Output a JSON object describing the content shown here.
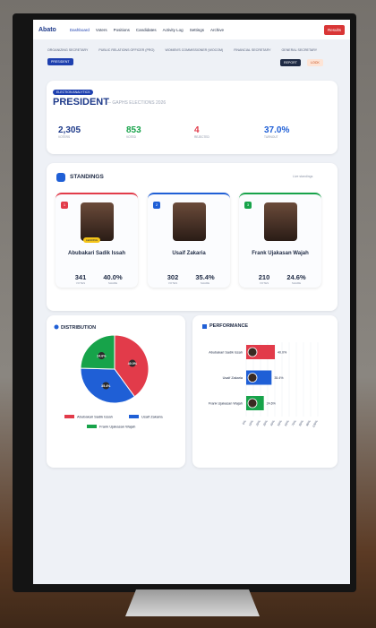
{
  "nav": {
    "brand": "Abato",
    "items": [
      "Dashboard",
      "Voters",
      "Positions",
      "Candidates",
      "Activity Log",
      "Settings",
      "Archive"
    ],
    "results": "Results"
  },
  "tabs": [
    "ORGANIZING SECRETARY",
    "PUBLIC RELATIONS OFFICER (PRO)",
    "WOMEN'S COMMISSIONER (WOCOM)",
    "FINANCIAL SECRETARY",
    "GENERAL SECRETARY",
    "PRESIDENT"
  ],
  "actions": [
    "REPORT",
    "LOCK"
  ],
  "header": {
    "badge": "ELECTION ANALYTICS",
    "title": "PRESIDENT",
    "subtitle": "— GAPHS ELECTIONS 2026"
  },
  "stats": [
    {
      "value": "2,305",
      "label": "VOTERS"
    },
    {
      "value": "853",
      "label": "VOTED"
    },
    {
      "value": "4",
      "label": "REJECTED"
    },
    {
      "value": "37.0%",
      "label": "TURNOUT"
    }
  ],
  "standings": {
    "title": "STANDINGS",
    "note": "Live standings",
    "candidates": [
      {
        "rank": "1",
        "name": "Abubakari Sadik Issah",
        "badge": "LEADING",
        "votes": "341",
        "votes_label": "VOTES",
        "share": "40.0%",
        "share_label": "SHARE"
      },
      {
        "rank": "2",
        "name": "Usaif Zakaria",
        "votes": "302",
        "votes_label": "VOTES",
        "share": "35.4%",
        "share_label": "SHARE"
      },
      {
        "rank": "3",
        "name": "Frank Ujakasan Wajah",
        "votes": "210",
        "votes_label": "VOTES",
        "share": "24.6%",
        "share_label": "SHARE"
      }
    ]
  },
  "chart_data": [
    {
      "type": "pie",
      "title": "DISTRIBUTION",
      "categories": [
        "Abubakari Sadik Issah",
        "Usaif Zakaria",
        "Frank Ujakasan Wajah"
      ],
      "values": [
        40.0,
        35.4,
        24.6
      ],
      "value_labels": [
        "40.0%",
        "35.4%",
        "24.6%"
      ],
      "colors": [
        "#e23b4a",
        "#1f5fd6",
        "#17a34a"
      ]
    },
    {
      "type": "bar",
      "orientation": "horizontal",
      "title": "PERFORMANCE",
      "categories": [
        "Abubakari Sadik Issah",
        "Usaif Zakaria",
        "Frank Ujakasan Wajah"
      ],
      "values": [
        40.0,
        35.4,
        24.6
      ],
      "value_labels": [
        "40.0%",
        "35.4%",
        "24.6%"
      ],
      "colors": [
        "#e23b4a",
        "#1f5fd6",
        "#17a34a"
      ],
      "xlim": [
        0,
        100
      ],
      "xticks": [
        {
          "value": 0,
          "label": "0%"
        },
        {
          "value": 10,
          "label": "10%"
        },
        {
          "value": 20,
          "label": "20%"
        },
        {
          "value": 30,
          "label": "30%"
        },
        {
          "value": 40,
          "label": "40%"
        },
        {
          "value": 50,
          "label": "50%"
        },
        {
          "value": 60,
          "label": "60%"
        },
        {
          "value": 70,
          "label": "70%"
        },
        {
          "value": 80,
          "label": "80%"
        },
        {
          "value": 90,
          "label": "90%"
        },
        {
          "value": 100,
          "label": "100%"
        }
      ],
      "grid": true
    }
  ]
}
